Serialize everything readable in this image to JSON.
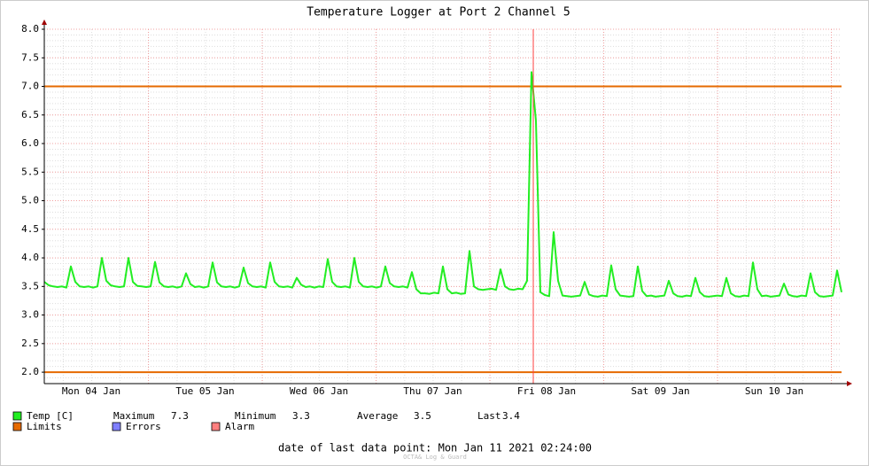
{
  "chart_data": {
    "type": "line",
    "title": "Temperature Logger at Port 2 Channel 5",
    "xticks": [
      "Mon 04 Jan",
      "Tue 05 Jan",
      "Wed 06 Jan",
      "Thu 07 Jan",
      "Fri 08 Jan",
      "Sat 09 Jan",
      "Sun 10 Jan"
    ],
    "ylim": [
      1.8,
      8.0
    ],
    "yticks": [
      {
        "value": 2,
        "label": "2.0"
      },
      {
        "value": 2.5,
        "label": "2.5"
      },
      {
        "value": 3,
        "label": "3.0"
      },
      {
        "value": 3.5,
        "label": "3.5"
      },
      {
        "value": 4,
        "label": "4.0"
      },
      {
        "value": 4.5,
        "label": "4.5"
      },
      {
        "value": 5,
        "label": "5.0"
      },
      {
        "value": 5.5,
        "label": "5.5"
      },
      {
        "value": 6,
        "label": "6.0"
      },
      {
        "value": 6.5,
        "label": "6.5"
      },
      {
        "value": 7,
        "label": "7.0"
      },
      {
        "value": 7.5,
        "label": "7.5"
      },
      {
        "value": 8,
        "label": "8.0"
      }
    ],
    "grid": true,
    "series": [
      {
        "name": "Temp [C]",
        "color": "#22ee22",
        "values": [
          3.58,
          3.52,
          3.5,
          3.49,
          3.5,
          3.48,
          3.85,
          3.58,
          3.5,
          3.49,
          3.5,
          3.48,
          3.5,
          4.0,
          3.6,
          3.52,
          3.5,
          3.49,
          3.5,
          4.0,
          3.58,
          3.51,
          3.5,
          3.49,
          3.5,
          3.93,
          3.57,
          3.5,
          3.49,
          3.5,
          3.48,
          3.5,
          3.73,
          3.54,
          3.49,
          3.5,
          3.48,
          3.5,
          3.92,
          3.57,
          3.5,
          3.49,
          3.5,
          3.48,
          3.5,
          3.83,
          3.56,
          3.5,
          3.49,
          3.5,
          3.48,
          3.92,
          3.58,
          3.5,
          3.49,
          3.5,
          3.48,
          3.65,
          3.53,
          3.49,
          3.5,
          3.48,
          3.5,
          3.49,
          3.98,
          3.58,
          3.5,
          3.49,
          3.5,
          3.48,
          4.0,
          3.58,
          3.5,
          3.49,
          3.5,
          3.48,
          3.5,
          3.85,
          3.56,
          3.5,
          3.49,
          3.5,
          3.48,
          3.75,
          3.45,
          3.38,
          3.38,
          3.37,
          3.39,
          3.38,
          3.85,
          3.45,
          3.38,
          3.39,
          3.37,
          3.38,
          4.12,
          3.5,
          3.45,
          3.44,
          3.45,
          3.46,
          3.44,
          3.8,
          3.5,
          3.45,
          3.44,
          3.46,
          3.45,
          3.6,
          7.25,
          6.4,
          3.4,
          3.35,
          3.33,
          4.45,
          3.6,
          3.34,
          3.33,
          3.32,
          3.33,
          3.34,
          3.58,
          3.36,
          3.33,
          3.32,
          3.34,
          3.33,
          3.87,
          3.45,
          3.34,
          3.33,
          3.32,
          3.33,
          3.85,
          3.42,
          3.33,
          3.34,
          3.32,
          3.33,
          3.34,
          3.6,
          3.38,
          3.33,
          3.32,
          3.34,
          3.33,
          3.65,
          3.4,
          3.33,
          3.32,
          3.33,
          3.34,
          3.33,
          3.65,
          3.38,
          3.33,
          3.32,
          3.34,
          3.33,
          3.92,
          3.45,
          3.33,
          3.34,
          3.32,
          3.33,
          3.34,
          3.55,
          3.36,
          3.33,
          3.32,
          3.34,
          3.33,
          3.73,
          3.4,
          3.33,
          3.32,
          3.33,
          3.34,
          3.78,
          3.4
        ]
      }
    ],
    "limits": {
      "name": "Limits",
      "color": "#e66a00",
      "values": [
        2,
        7
      ]
    },
    "legend_extra": [
      {
        "name": "Errors",
        "color": "#7f7fff"
      },
      {
        "name": "Alarm",
        "color": "#ff7f7f"
      }
    ],
    "stats": [
      {
        "label": "Maximum",
        "value": 7.3
      },
      {
        "label": "Minimum",
        "value": 3.3
      },
      {
        "label": "Average",
        "value": 3.5
      },
      {
        "label": "Last",
        "value": 3.4
      }
    ],
    "footer": "date of last data point:  Mon Jan 11 2021 02:24:00",
    "watermark": "OCTA& Log & Guard"
  }
}
